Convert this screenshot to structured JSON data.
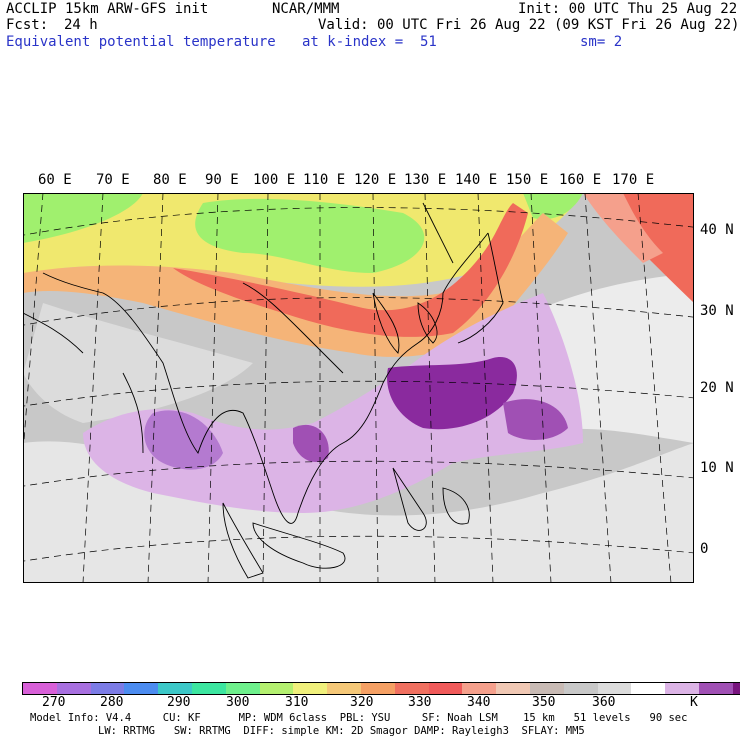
{
  "header": {
    "model_line": "ACCLIP 15km ARW-GFS init",
    "fcst_label": "Fcst:",
    "fcst_value": "24 h",
    "org": "NCAR/MMM",
    "init": "Init: 00 UTC Thu 25 Aug 22",
    "valid": "Valid: 00 UTC Fri 26 Aug 22 (09 KST Fri 26 Aug 22)",
    "field": "Equivalent potential temperature",
    "level": "at k-index =  51",
    "smooth": "sm= 2"
  },
  "map": {
    "lon_labels": [
      "60 E",
      "70 E",
      "80 E",
      "90 E",
      "100 E",
      "110 E",
      "120 E",
      "130 E",
      "140 E",
      "150 E",
      "160 E",
      "170 E"
    ],
    "lat_labels": [
      "40 N",
      "30 N",
      "20 N",
      "10 N",
      "0"
    ],
    "colors": {
      "background_gray": "#c8c8c8",
      "light_gray": "#dcdcdc",
      "pink_lilac": "#dcb4e6",
      "purple": "#b47ad0",
      "dark_purple": "#8a2a9e",
      "yellow": "#f0e86e",
      "light_green": "#a0f06e",
      "orange": "#f5b478",
      "red_orange": "#f06a5a",
      "salmon": "#f5a08c"
    }
  },
  "colorbar": {
    "colors": [
      "#d860d8",
      "#a870e0",
      "#7c7ce6",
      "#4c8cf0",
      "#3cc8c8",
      "#3ce6a0",
      "#6ef08c",
      "#b4f070",
      "#f0f07c",
      "#f5c878",
      "#f5a064",
      "#f07060",
      "#f05a5a",
      "#f5a08c",
      "#f0c8b4",
      "#c8bab4",
      "#c8c8c8",
      "#dcdcdc",
      "#ffffff",
      "#dcb4e6",
      "#a050b4",
      "#78147e"
    ],
    "labels": [
      "270",
      "280",
      "290",
      "300",
      "310",
      "320",
      "330",
      "340",
      "350",
      "360"
    ],
    "unit": "K"
  },
  "footer": {
    "line1": "Model Info: V4.4     CU: KF      MP: WDM 6class  PBL: YSU     SF: Noah LSM    15 km   51 levels   90 sec",
    "line2": "LW: RRTMG   SW: RRTMG  DIFF: simple KM: 2D Smagor DAMP: Rayleigh3  SFLAY: MM5"
  }
}
